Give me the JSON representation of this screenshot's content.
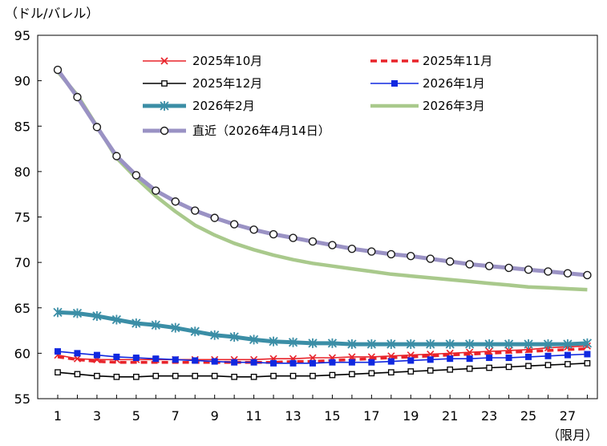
{
  "chart_data": {
    "type": "line",
    "title": "",
    "xlabel": "（限月）",
    "ylabel": "（ドル/バレル）",
    "xlim": [
      1,
      28
    ],
    "ylim": [
      55,
      95
    ],
    "x_ticks": [
      1,
      3,
      5,
      7,
      9,
      11,
      13,
      15,
      17,
      19,
      21,
      23,
      25,
      27
    ],
    "y_ticks": [
      55,
      60,
      65,
      70,
      75,
      80,
      85,
      90,
      95
    ],
    "x": [
      1,
      2,
      3,
      4,
      5,
      6,
      7,
      8,
      9,
      10,
      11,
      12,
      13,
      14,
      15,
      16,
      17,
      18,
      19,
      20,
      21,
      22,
      23,
      24,
      25,
      26,
      27,
      28
    ],
    "grid": false,
    "legend_position": "top",
    "series": [
      {
        "name": "2025年10月",
        "color": "#e8232a",
        "line_style": "solid",
        "marker": "x",
        "values": [
          59.8,
          59.4,
          59.3,
          59.3,
          59.3,
          59.3,
          59.3,
          59.3,
          59.3,
          59.3,
          59.3,
          59.4,
          59.4,
          59.5,
          59.5,
          59.6,
          59.6,
          59.7,
          59.8,
          59.9,
          60.0,
          60.1,
          60.2,
          60.3,
          60.4,
          60.6,
          60.7,
          60.8
        ]
      },
      {
        "name": "2025年11月",
        "color": "#e8232a",
        "line_style": "dashed",
        "marker": "none",
        "values": [
          59.6,
          59.3,
          59.1,
          59.0,
          59.0,
          59.0,
          59.0,
          59.0,
          59.0,
          59.0,
          59.0,
          59.0,
          59.1,
          59.1,
          59.2,
          59.3,
          59.4,
          59.5,
          59.6,
          59.7,
          59.8,
          59.9,
          60.0,
          60.1,
          60.2,
          60.3,
          60.4,
          60.5
        ]
      },
      {
        "name": "2025年12月",
        "color": "#000000",
        "line_style": "solid",
        "marker": "square-open",
        "values": [
          57.9,
          57.7,
          57.5,
          57.4,
          57.4,
          57.5,
          57.5,
          57.5,
          57.5,
          57.4,
          57.4,
          57.5,
          57.5,
          57.5,
          57.6,
          57.7,
          57.8,
          57.9,
          58.0,
          58.1,
          58.2,
          58.3,
          58.4,
          58.5,
          58.6,
          58.7,
          58.8,
          58.9
        ]
      },
      {
        "name": "2026年1月",
        "color": "#1028e0",
        "line_style": "solid",
        "marker": "square-filled",
        "values": [
          60.2,
          60.0,
          59.8,
          59.6,
          59.5,
          59.4,
          59.3,
          59.2,
          59.1,
          59.0,
          59.0,
          58.9,
          58.9,
          58.9,
          59.0,
          59.0,
          59.0,
          59.1,
          59.2,
          59.3,
          59.4,
          59.4,
          59.5,
          59.5,
          59.6,
          59.7,
          59.8,
          59.9
        ]
      },
      {
        "name": "2026年2月",
        "color": "#3b8ea6",
        "line_style": "solid",
        "marker": "asterisk",
        "values": [
          64.5,
          64.4,
          64.1,
          63.7,
          63.3,
          63.1,
          62.8,
          62.4,
          62.0,
          61.8,
          61.5,
          61.3,
          61.2,
          61.1,
          61.1,
          61.0,
          61.0,
          61.0,
          61.0,
          61.0,
          61.0,
          61.0,
          61.0,
          61.0,
          61.0,
          61.0,
          61.0,
          61.1
        ]
      },
      {
        "name": "2026年3月",
        "color": "#a9c98c",
        "line_style": "solid",
        "marker": "none",
        "values": [
          91.0,
          88.4,
          85.0,
          81.5,
          79.3,
          77.3,
          75.6,
          74.1,
          73.0,
          72.1,
          71.4,
          70.8,
          70.3,
          69.9,
          69.6,
          69.3,
          69.0,
          68.7,
          68.5,
          68.3,
          68.1,
          67.9,
          67.7,
          67.5,
          67.3,
          67.2,
          67.1,
          67.0
        ]
      },
      {
        "name": "直近（2026年4月14日）",
        "color": "#9a92c4",
        "line_style": "solid",
        "marker": "circle-open",
        "values": [
          91.2,
          88.2,
          84.9,
          81.7,
          79.6,
          77.9,
          76.7,
          75.7,
          74.9,
          74.2,
          73.6,
          73.1,
          72.7,
          72.3,
          71.9,
          71.5,
          71.2,
          70.9,
          70.7,
          70.4,
          70.1,
          69.8,
          69.6,
          69.4,
          69.2,
          69.0,
          68.8,
          68.6
        ]
      }
    ]
  }
}
